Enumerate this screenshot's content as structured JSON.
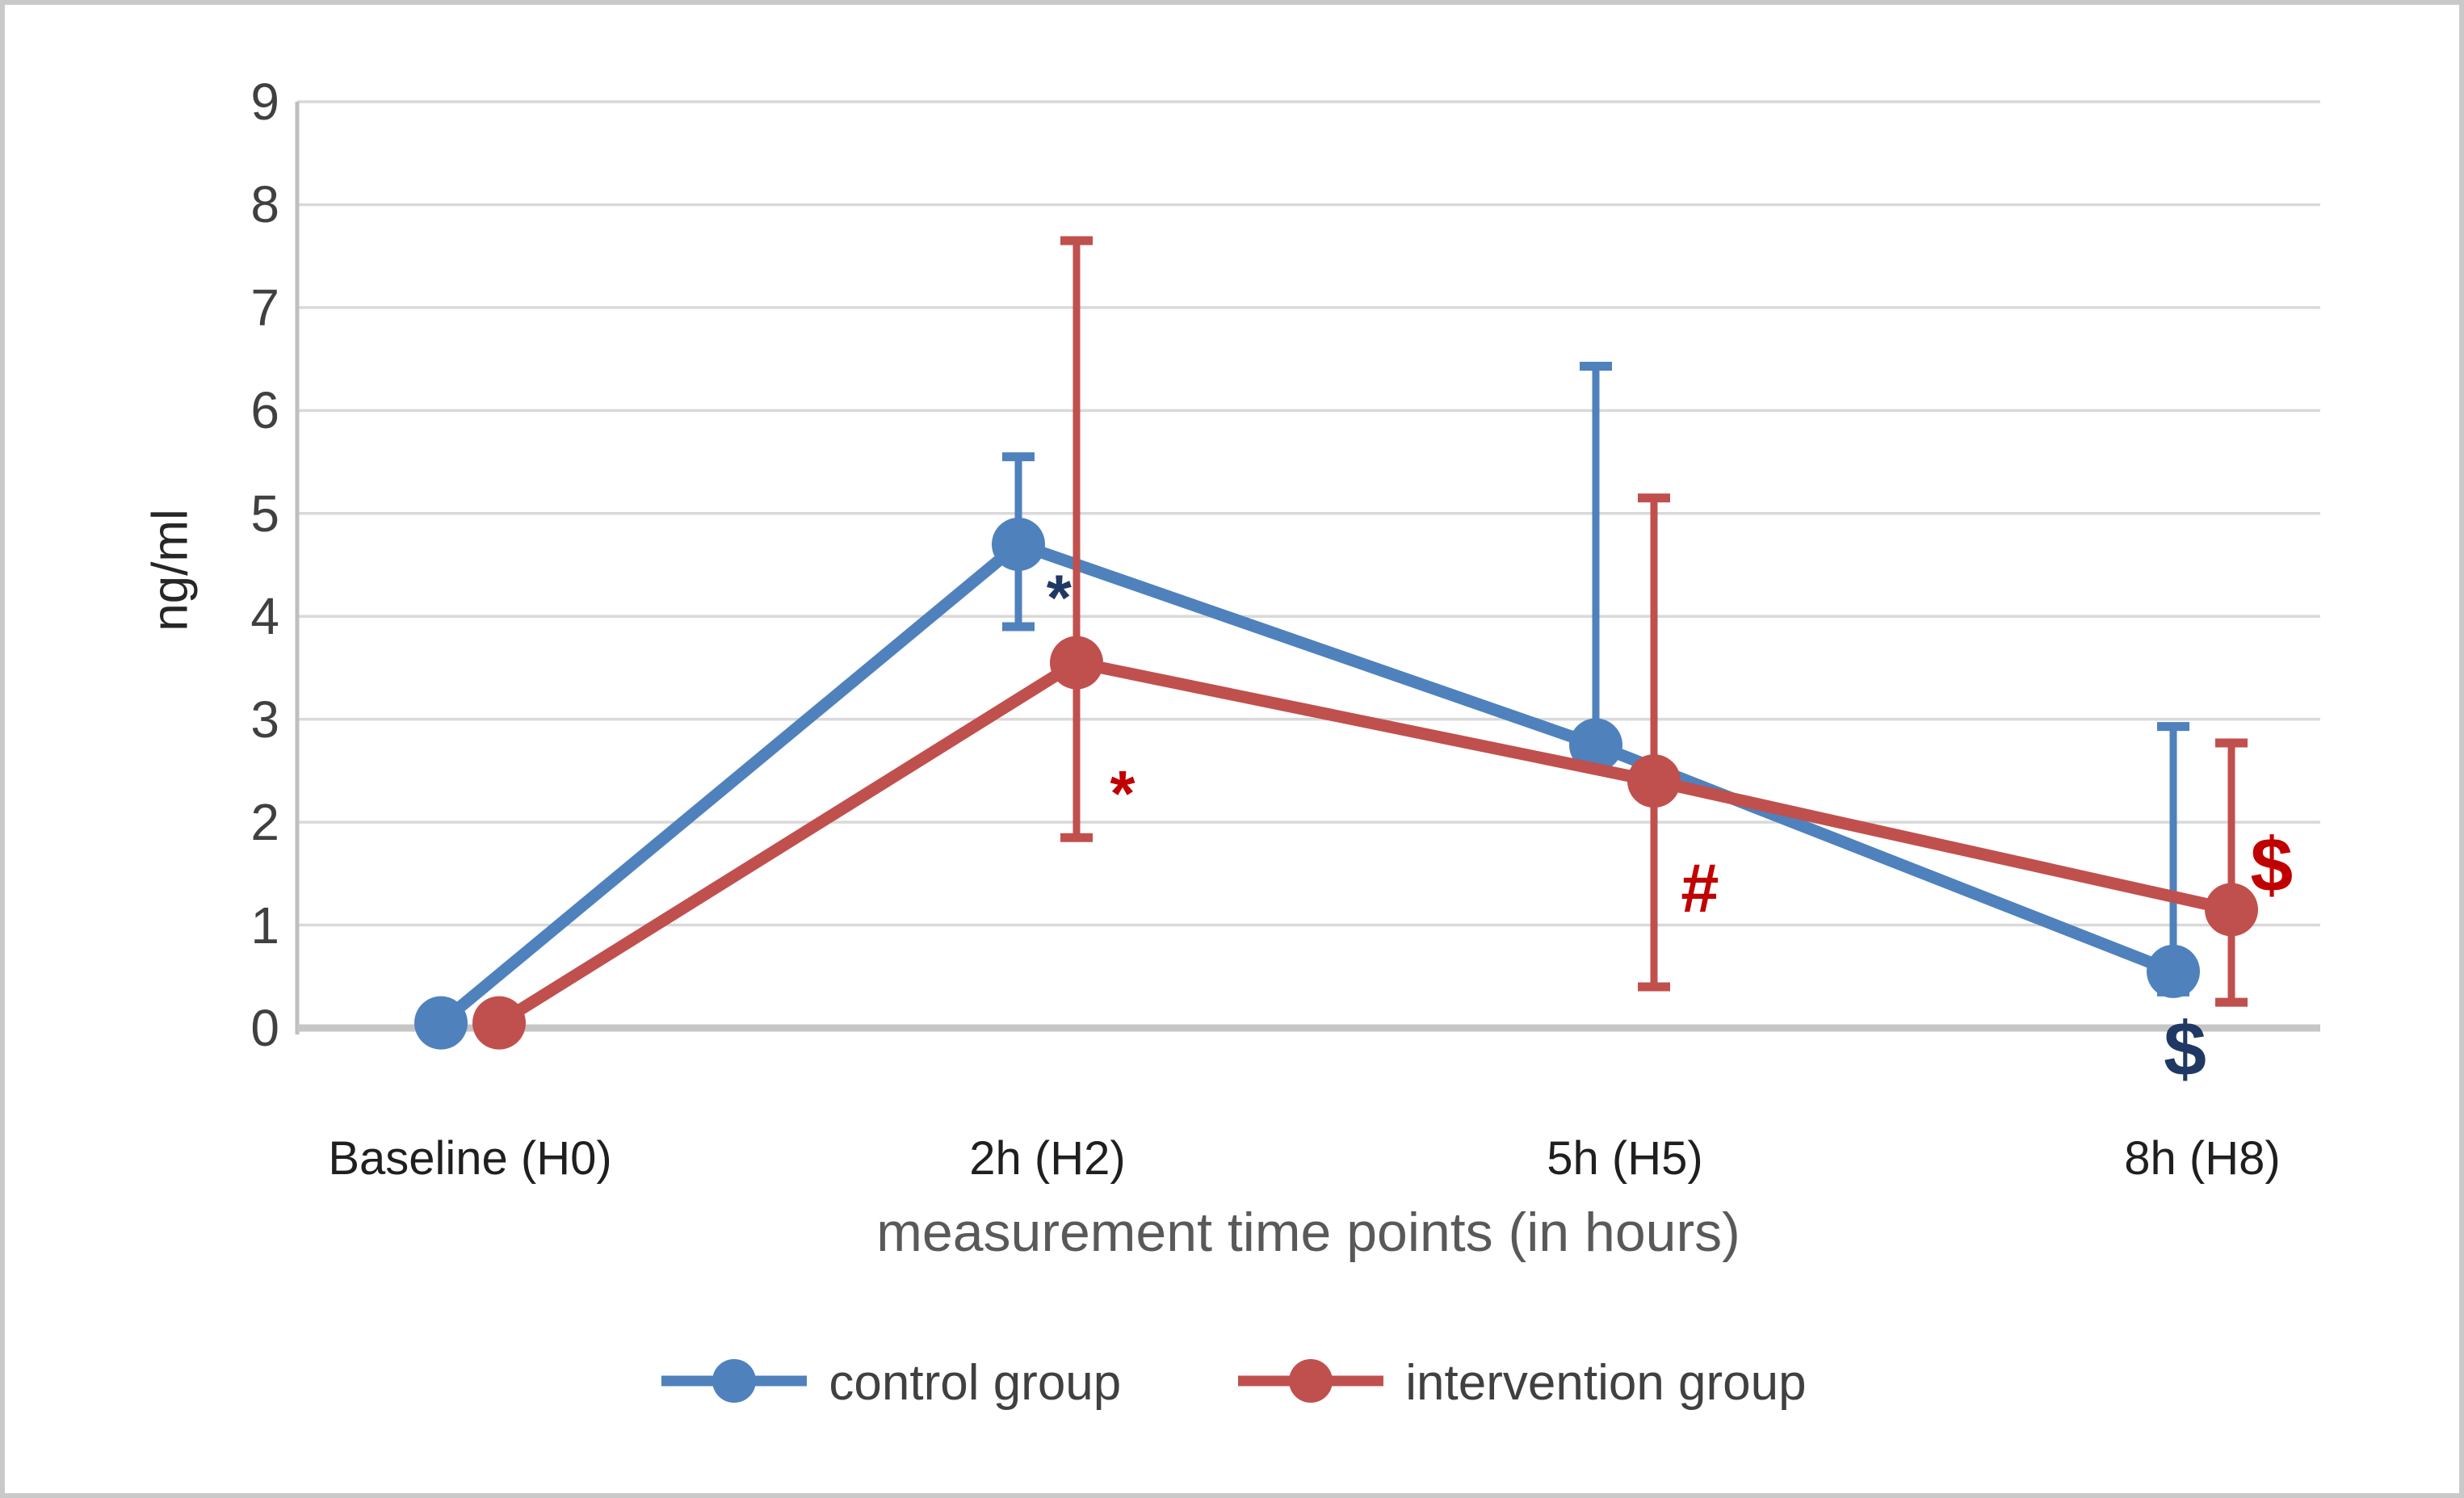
{
  "figure": {
    "background": "#ffffff",
    "border_color": "#c9c9c9"
  },
  "chart_data": {
    "type": "line",
    "title": "",
    "ylabel": "ng/ml",
    "xlabel": "measurement time points (in hours)",
    "categories": [
      "Baseline (H0)",
      "2h (H2)",
      "5h (H5)",
      "8h (H8)"
    ],
    "yticks": [
      0,
      1,
      2,
      3,
      4,
      5,
      6,
      7,
      8,
      9
    ],
    "ylim": [
      0,
      9
    ],
    "grid": true,
    "legend_position": "bottom-center",
    "colors": {
      "gridline": "#d9d9d9",
      "axis": "#bfbfbf",
      "tick_label": "#404040",
      "category_label": "#1f1f1f",
      "axis_title": "#595959"
    },
    "series": [
      {
        "name": "control group",
        "color": "#4F81BD",
        "values": [
          0.05,
          4.7,
          2.75,
          0.55
        ],
        "error_high": [
          null,
          5.55,
          6.43,
          2.93
        ],
        "error_low": [
          null,
          3.9,
          null,
          0.35
        ]
      },
      {
        "name": "intervention group",
        "color": "#C0504D",
        "values": [
          0.05,
          3.55,
          2.4,
          1.15
        ],
        "error_high": [
          null,
          7.65,
          5.15,
          2.77
        ],
        "error_low": [
          null,
          1.85,
          0.4,
          0.25
        ]
      }
    ],
    "annotations": [
      {
        "text": "*",
        "color": "#1F3864",
        "x": 1.02,
        "y": 4.31,
        "size": 80
      },
      {
        "text": "*",
        "color": "#C00000",
        "x": 1.13,
        "y": 2.41,
        "size": 80
      },
      {
        "text": "#",
        "color": "#C00000",
        "x": 2.13,
        "y": 1.37,
        "size": 85
      },
      {
        "text": "$",
        "color": "#C00000",
        "x": 3.12,
        "y": 1.59,
        "size": 95
      },
      {
        "text": "$",
        "color": "#1F3864",
        "x": 2.97,
        "y": -0.2,
        "size": 95
      }
    ]
  }
}
